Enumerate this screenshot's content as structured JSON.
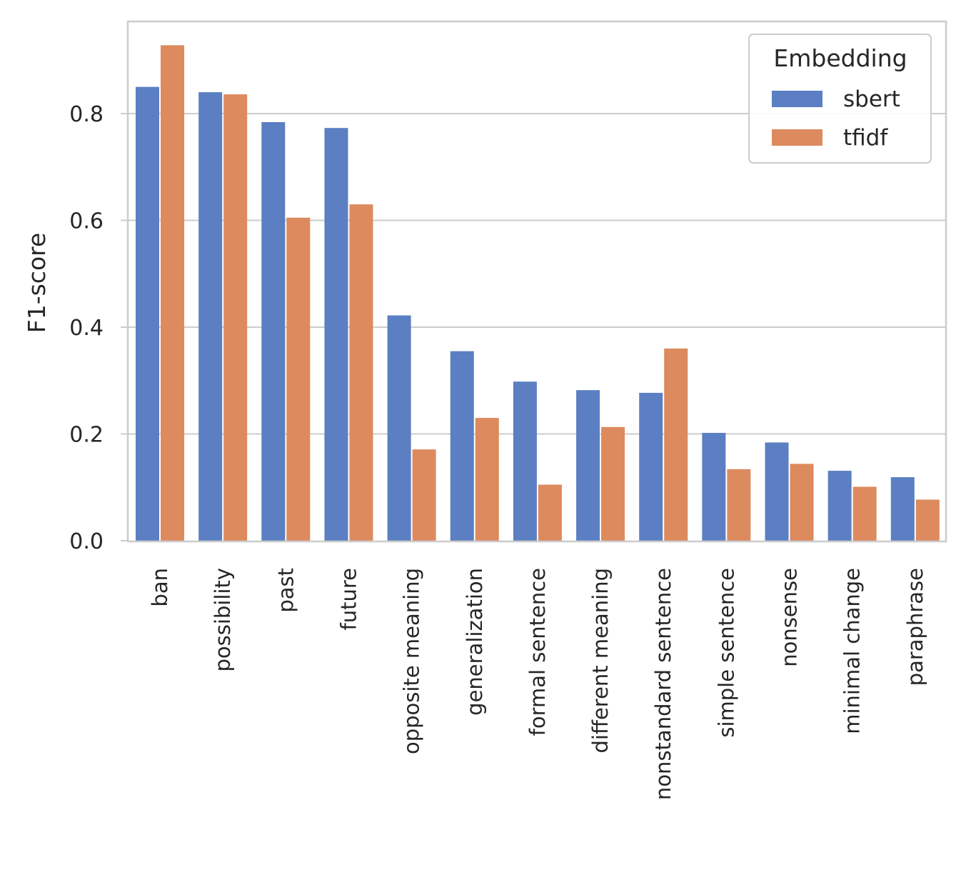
{
  "chart_data": {
    "type": "bar",
    "title": "",
    "xlabel": "",
    "ylabel": "F1-score",
    "ylim": [
      0,
      0.975
    ],
    "yticks": [
      "0.0",
      "0.2",
      "0.4",
      "0.6",
      "0.8"
    ],
    "grid": "horizontal",
    "legend_position": "top-right",
    "legend_title": "Embedding",
    "categories": [
      "ban",
      "possibility",
      "past",
      "future",
      "opposite meaning",
      "generalization",
      "formal sentence",
      "different meaning",
      "nonstandard sentence",
      "simple sentence",
      "nonsense",
      "minimal change",
      "paraphrase"
    ],
    "series": [
      {
        "name": "sbert",
        "color": "#5b7fc2",
        "values": [
          0.85,
          0.84,
          0.784,
          0.773,
          0.422,
          0.355,
          0.298,
          0.282,
          0.277,
          0.202,
          0.184,
          0.131,
          0.119
        ]
      },
      {
        "name": "tfidf",
        "color": "#dd8a5e",
        "values": [
          0.928,
          0.836,
          0.605,
          0.63,
          0.171,
          0.23,
          0.105,
          0.213,
          0.36,
          0.134,
          0.144,
          0.101,
          0.077
        ]
      }
    ]
  }
}
